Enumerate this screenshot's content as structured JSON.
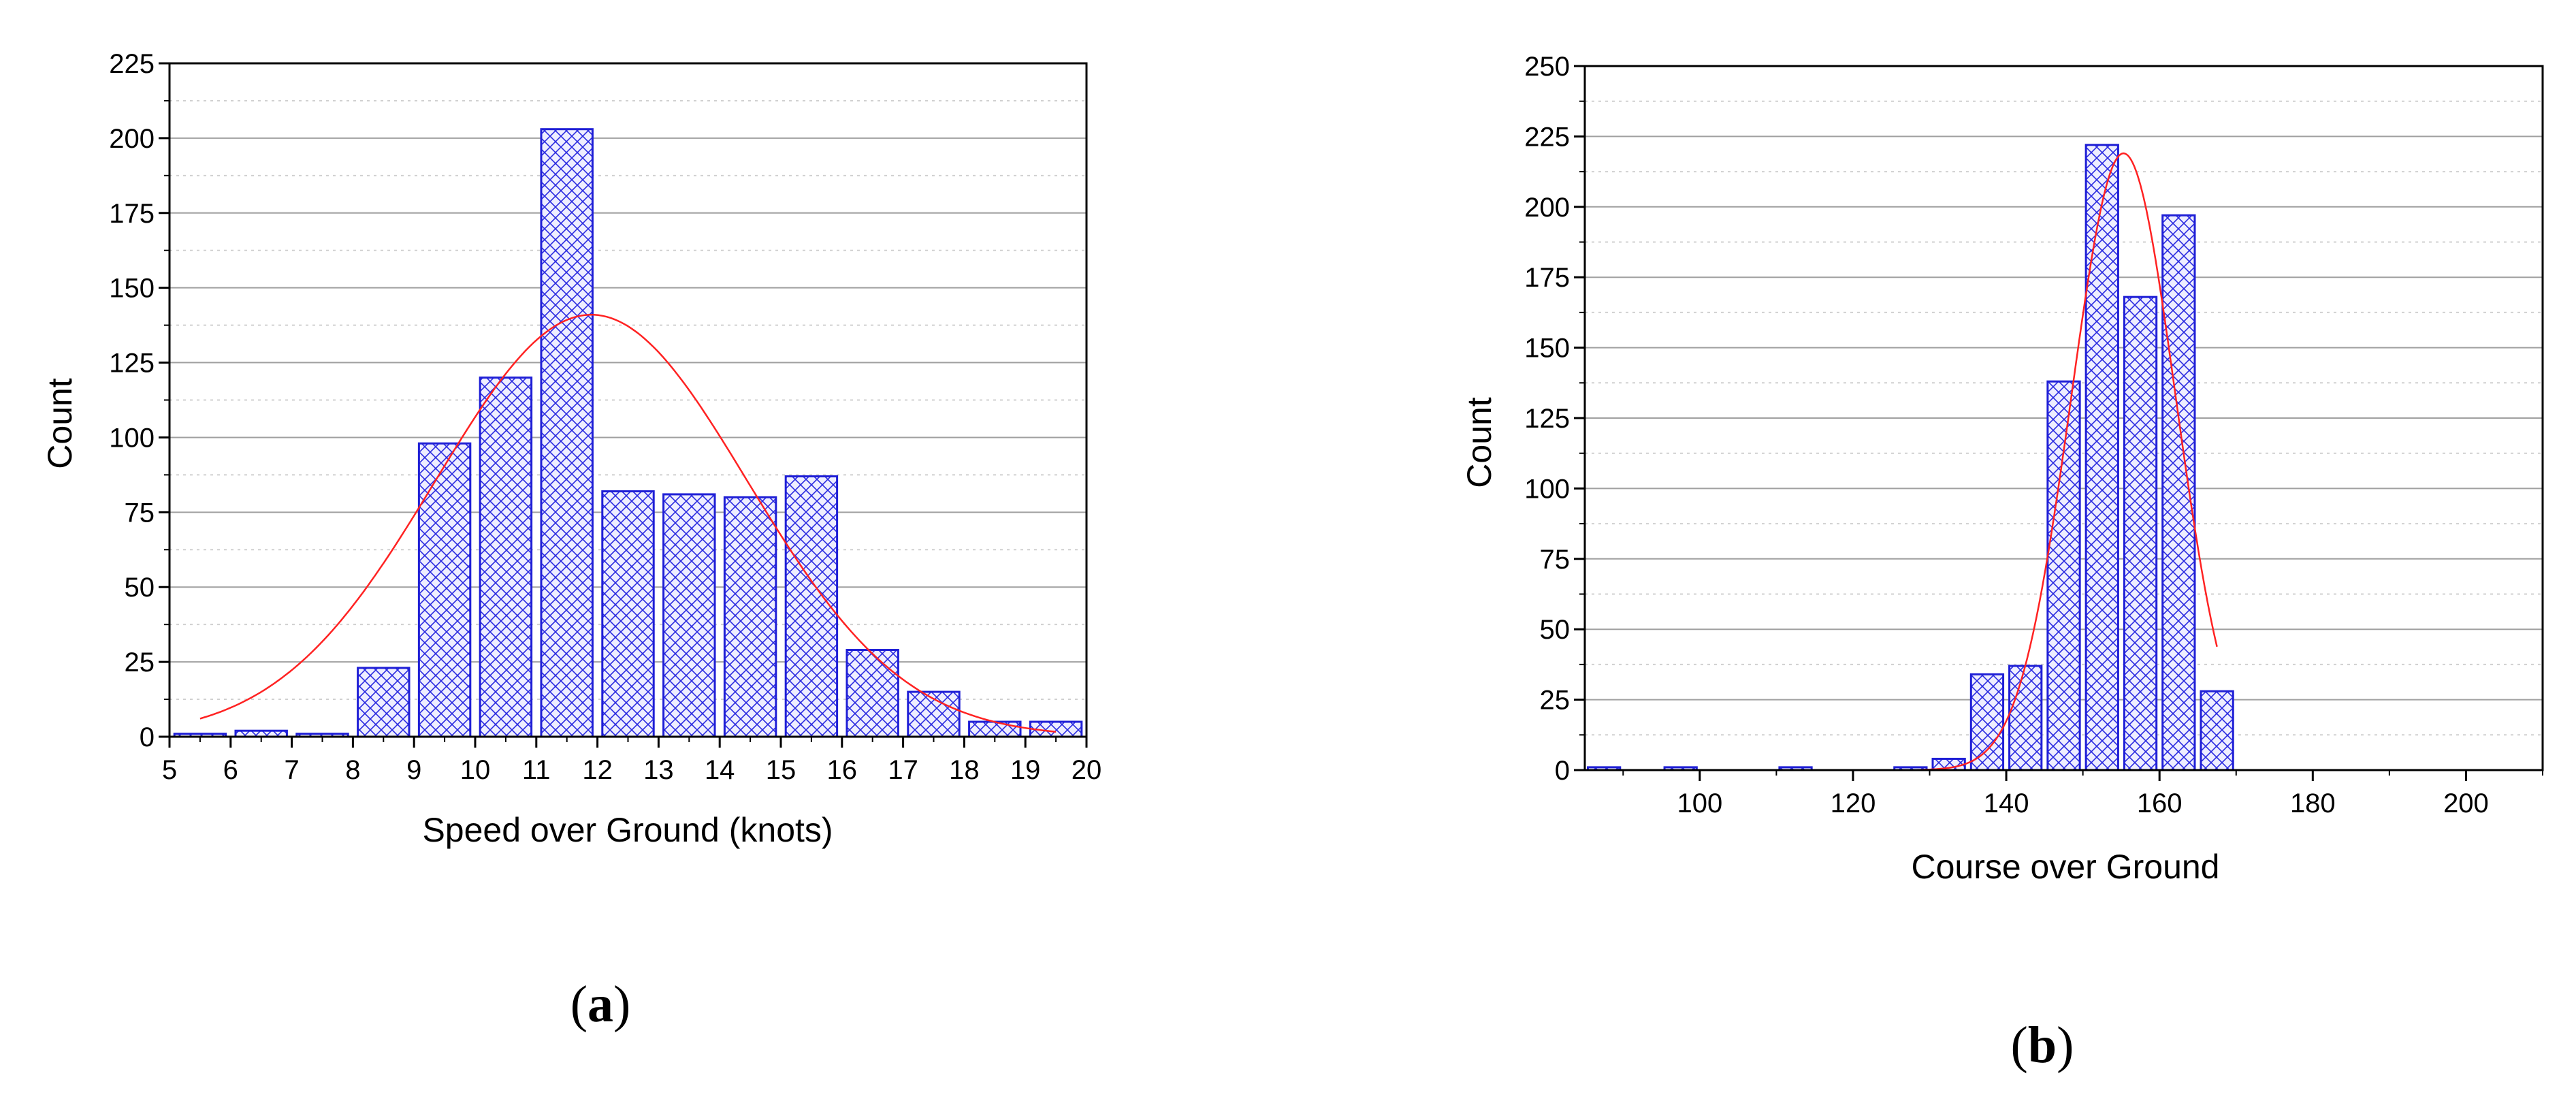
{
  "colors": {
    "bar_stroke": "#1f1fd6",
    "bar_hatch": "#2a2ae0",
    "bar_fill": "#e6e6ff",
    "fit_curve": "#ff2222",
    "grid_major": "#a0a0a0",
    "grid_minor": "#d0d0d0"
  },
  "chart_data": [
    {
      "type": "bar",
      "panel_label": "a",
      "xlabel": "Speed over Ground (knots)",
      "ylabel": "Count",
      "xlim": [
        5,
        20
      ],
      "ylim": [
        0,
        225
      ],
      "x_ticks": [
        5,
        6,
        7,
        8,
        9,
        10,
        11,
        12,
        13,
        14,
        15,
        16,
        17,
        18,
        19,
        20
      ],
      "y_ticks": [
        0,
        25,
        50,
        75,
        100,
        125,
        150,
        175,
        200,
        225
      ],
      "bin_width": 1,
      "bars": [
        {
          "x": 5.5,
          "value": 1
        },
        {
          "x": 6.5,
          "value": 2
        },
        {
          "x": 7.5,
          "value": 1
        },
        {
          "x": 8.5,
          "value": 23
        },
        {
          "x": 9.5,
          "value": 98
        },
        {
          "x": 10.5,
          "value": 120
        },
        {
          "x": 11.5,
          "value": 203
        },
        {
          "x": 12.5,
          "value": 82
        },
        {
          "x": 13.5,
          "value": 81
        },
        {
          "x": 14.5,
          "value": 80
        },
        {
          "x": 15.5,
          "value": 87
        },
        {
          "x": 16.5,
          "value": 29
        },
        {
          "x": 17.5,
          "value": 15
        },
        {
          "x": 18.5,
          "value": 5
        },
        {
          "x": 19.5,
          "value": 5
        }
      ],
      "fit_curve": {
        "type": "normal",
        "x_range": [
          5.5,
          19.5
        ],
        "peak": 141,
        "mean": 11.9,
        "sd": 2.55
      },
      "grid": true
    },
    {
      "type": "bar",
      "panel_label": "b",
      "xlabel": "Course over Ground",
      "ylabel": "Count",
      "xlim": [
        85,
        210
      ],
      "ylim": [
        0,
        250
      ],
      "x_ticks": [
        100,
        120,
        140,
        160,
        180,
        200
      ],
      "y_ticks": [
        0,
        25,
        50,
        75,
        100,
        125,
        150,
        175,
        200,
        225,
        250
      ],
      "bin_width": 5,
      "bars": [
        {
          "x": 87.5,
          "value": 1
        },
        {
          "x": 97.5,
          "value": 1
        },
        {
          "x": 112.5,
          "value": 1
        },
        {
          "x": 127.5,
          "value": 1
        },
        {
          "x": 132.5,
          "value": 4
        },
        {
          "x": 137.5,
          "value": 34
        },
        {
          "x": 142.5,
          "value": 37
        },
        {
          "x": 147.5,
          "value": 138
        },
        {
          "x": 152.5,
          "value": 222
        },
        {
          "x": 157.5,
          "value": 168
        },
        {
          "x": 162.5,
          "value": 197
        },
        {
          "x": 167.5,
          "value": 28
        }
      ],
      "fit_curve": {
        "type": "normal",
        "x_range": [
          127.5,
          167.5
        ],
        "peak": 219,
        "mean": 155.3,
        "sd": 6.8
      },
      "grid": true
    }
  ]
}
